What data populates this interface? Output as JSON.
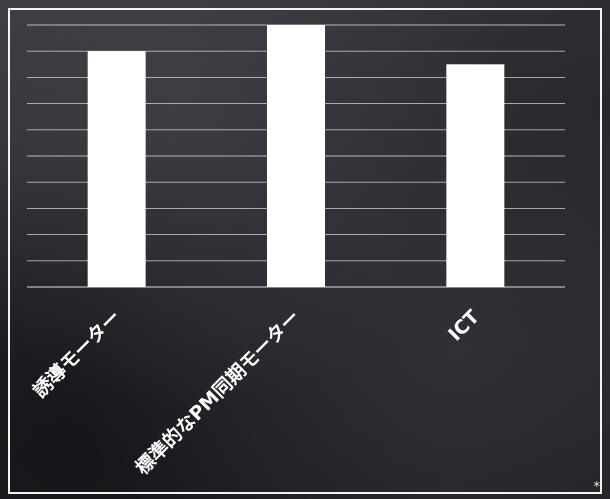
{
  "chart_data": {
    "type": "bar",
    "categories": [
      "誘導モーター",
      "標準的なPM同期モーター",
      "ICT"
    ],
    "values": [
      90,
      100,
      85
    ],
    "ylim": [
      0,
      100
    ],
    "grid": true,
    "bar_color": "#ffffff",
    "grid_color": "#cfd2d6",
    "label_color": "#ffffff"
  },
  "footnote": "*"
}
